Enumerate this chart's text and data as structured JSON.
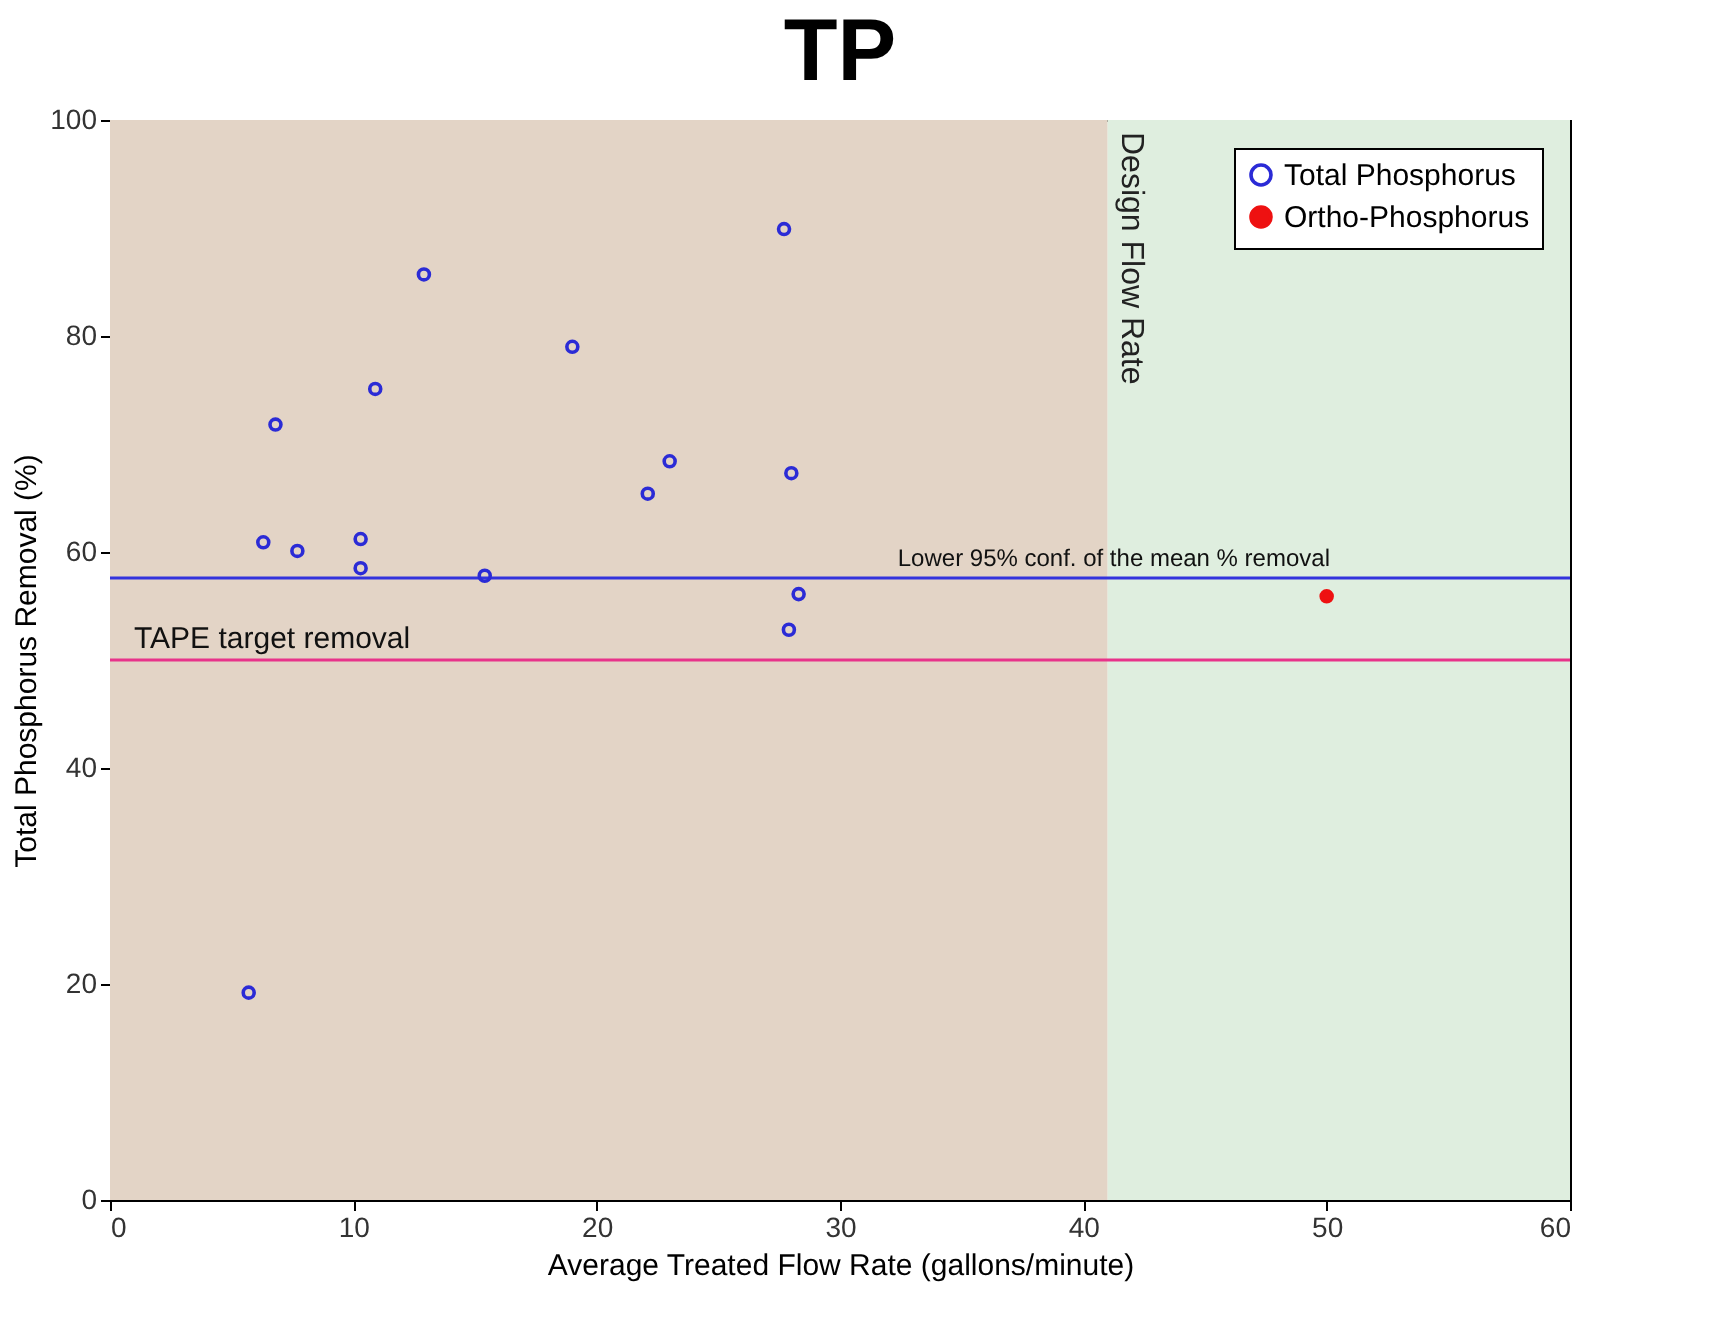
{
  "chart_data": {
    "type": "scatter",
    "title": "TP",
    "xlabel": "Average Treated Flow Rate (gallons/minute)",
    "ylabel": "Total Phosphorus Removal (%)",
    "series": [
      {
        "name": "Total Phosphorus",
        "color": "#2b2bd6",
        "x": [
          5.7,
          6.8,
          6.3,
          7.7,
          10.3,
          10.3,
          10.9,
          12.9,
          15.4,
          19.0,
          22.1,
          23.0,
          27.7,
          28.0,
          28.3,
          27.9
        ],
        "values": [
          19.2,
          71.8,
          60.9,
          60.1,
          61.2,
          58.5,
          75.1,
          85.7,
          57.8,
          79.0,
          65.4,
          68.4,
          89.9,
          67.3,
          56.1,
          52.8
        ]
      },
      {
        "name": "Ortho-Phosphorus",
        "color": "#ee1111",
        "x": [
          50
        ],
        "values": [
          55.9
        ]
      }
    ],
    "xlim": [
      0,
      60
    ],
    "xticks": [
      0,
      10,
      20,
      30,
      40,
      50,
      60
    ],
    "ylim": [
      0,
      100
    ],
    "yticks": [
      0,
      20,
      40,
      60,
      80,
      100
    ],
    "bands": [
      {
        "axis": "x",
        "from": 0,
        "to": 41,
        "label": null,
        "color": "#e3d4c6"
      },
      {
        "axis": "x",
        "from": 41,
        "to": 60,
        "label": "Design Flow Rate",
        "color": "#dfeedf"
      }
    ],
    "ref_lines": [
      {
        "axis": "y",
        "value": 57.6,
        "label": "Lower 95% conf. of the mean % removal",
        "color": "#3333dd",
        "line_style": "solid"
      },
      {
        "axis": "y",
        "value": 50,
        "label": "TAPE target removal",
        "color": "#e8338a",
        "line_style": "solid"
      }
    ],
    "marker": "circle",
    "legend": "top right",
    "grid": false
  }
}
